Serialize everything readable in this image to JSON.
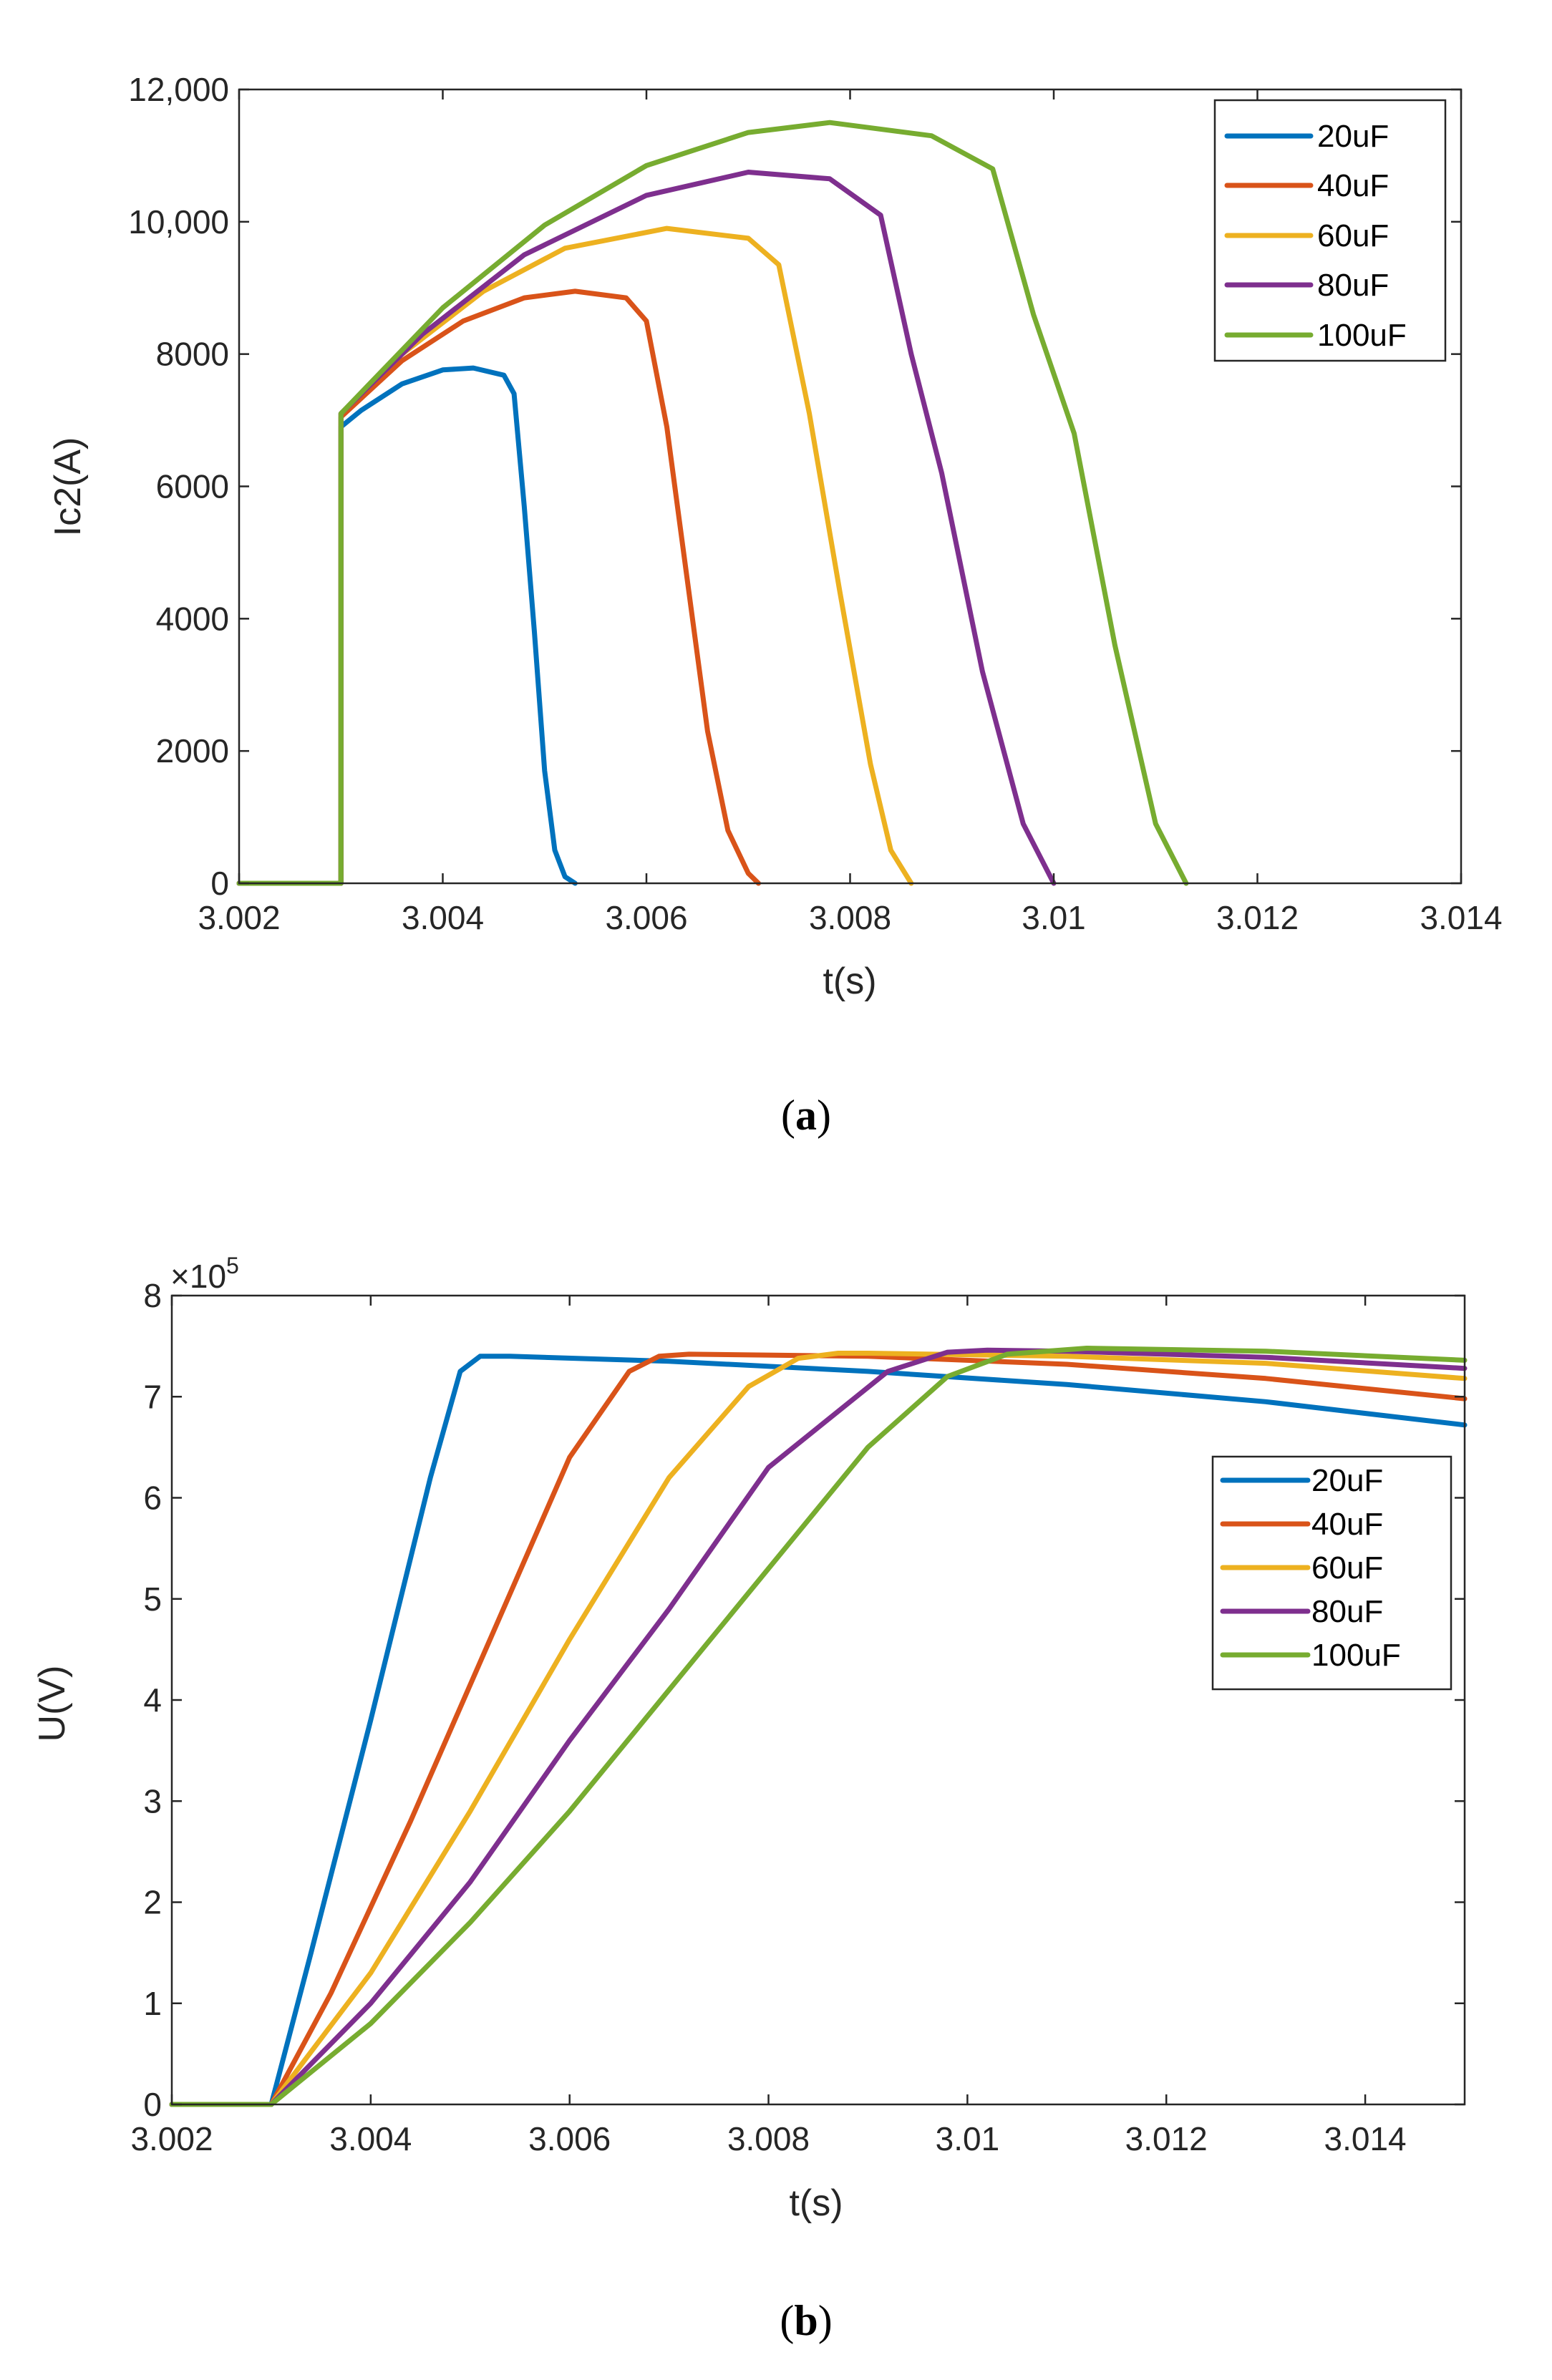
{
  "chart_data": [
    {
      "type": "line",
      "panel_label": "a",
      "title": "",
      "xlabel": "t(s)",
      "ylabel": "Ic2(A)",
      "xlim": [
        3.002,
        3.014
      ],
      "ylim": [
        0,
        12000
      ],
      "xticks": [
        3.002,
        3.004,
        3.006,
        3.008,
        3.01,
        3.012,
        3.014
      ],
      "xtick_labels": [
        "3.002",
        "3.004",
        "3.006",
        "3.008",
        "3.01",
        "3.012",
        "3.014"
      ],
      "yticks": [
        0,
        2000,
        4000,
        6000,
        8000,
        10000,
        12000
      ],
      "ytick_labels": [
        "0",
        "2000",
        "4000",
        "6000",
        "8000",
        "10,000",
        "12,000"
      ],
      "grid": false,
      "legend_position": "top-right",
      "series": [
        {
          "name": "20uF",
          "color": "#0072BD",
          "x": [
            3.002,
            3.003,
            3.003,
            3.0032,
            3.0036,
            3.004,
            3.0043,
            3.0046,
            3.0047,
            3.0048,
            3.0049,
            3.005,
            3.0051,
            3.0052,
            3.0053
          ],
          "y": [
            0,
            0,
            6900,
            7150,
            7550,
            7760,
            7790,
            7680,
            7400,
            5700,
            3800,
            1700,
            500,
            100,
            0
          ]
        },
        {
          "name": "40uF",
          "color": "#D95319",
          "x": [
            3.002,
            3.003,
            3.003,
            3.0036,
            3.0042,
            3.0048,
            3.0053,
            3.0058,
            3.006,
            3.0062,
            3.0064,
            3.0066,
            3.0068,
            3.007,
            3.0071
          ],
          "y": [
            0,
            0,
            7050,
            7900,
            8500,
            8850,
            8950,
            8850,
            8500,
            6900,
            4600,
            2300,
            800,
            150,
            0
          ]
        },
        {
          "name": "60uF",
          "color": "#EDB120",
          "x": [
            3.002,
            3.003,
            3.003,
            3.0036,
            3.0044,
            3.0052,
            3.0062,
            3.007,
            3.0073,
            3.0076,
            3.0079,
            3.0082,
            3.0084,
            3.0086
          ],
          "y": [
            0,
            0,
            7100,
            8000,
            8950,
            9600,
            9900,
            9750,
            9350,
            7100,
            4400,
            1800,
            500,
            0
          ]
        },
        {
          "name": "80uF",
          "color": "#7E2F8E",
          "x": [
            3.002,
            3.003,
            3.003,
            3.0038,
            3.0048,
            3.006,
            3.007,
            3.0078,
            3.0083,
            3.0086,
            3.0089,
            3.0093,
            3.0097,
            3.01
          ],
          "y": [
            0,
            0,
            7100,
            8300,
            9500,
            10400,
            10750,
            10650,
            10100,
            8000,
            6200,
            3200,
            900,
            0
          ]
        },
        {
          "name": "100uF",
          "color": "#77AC30",
          "x": [
            3.002,
            3.003,
            3.003,
            3.004,
            3.005,
            3.006,
            3.007,
            3.0078,
            3.0088,
            3.0094,
            3.0098,
            3.0102,
            3.0106,
            3.011,
            3.0113
          ],
          "y": [
            0,
            0,
            7100,
            8700,
            9950,
            10850,
            11350,
            11500,
            11300,
            10800,
            8600,
            6800,
            3600,
            900,
            0
          ]
        }
      ]
    },
    {
      "type": "line",
      "panel_label": "b",
      "title": "",
      "xlabel": "t(s)",
      "ylabel": "U(V)",
      "y_multiplier_base": "×10",
      "y_multiplier_exp": "5",
      "xlim": [
        3.002,
        3.015
      ],
      "ylim": [
        0,
        8
      ],
      "xticks": [
        3.002,
        3.004,
        3.006,
        3.008,
        3.01,
        3.012,
        3.014
      ],
      "xtick_labels": [
        "3.002",
        "3.004",
        "3.006",
        "3.008",
        "3.01",
        "3.012",
        "3.014"
      ],
      "yticks": [
        0,
        1,
        2,
        3,
        4,
        5,
        6,
        7,
        8
      ],
      "ytick_labels": [
        "0",
        "1",
        "2",
        "3",
        "4",
        "5",
        "6",
        "7",
        "8"
      ],
      "grid": false,
      "legend_position": "right",
      "series": [
        {
          "name": "20uF",
          "color": "#0072BD",
          "x": [
            3.002,
            3.003,
            3.0034,
            3.004,
            3.0046,
            3.0049,
            3.0051,
            3.0054,
            3.007,
            3.009,
            3.011,
            3.013,
            3.015
          ],
          "y": [
            0,
            0,
            1.5,
            3.8,
            6.2,
            7.25,
            7.4,
            7.4,
            7.35,
            7.25,
            7.12,
            6.95,
            6.72
          ]
        },
        {
          "name": "40uF",
          "color": "#D95319",
          "x": [
            3.002,
            3.003,
            3.0036,
            3.0044,
            3.0052,
            3.006,
            3.0066,
            3.0069,
            3.0072,
            3.009,
            3.011,
            3.013,
            3.015
          ],
          "y": [
            0,
            0,
            1.1,
            2.8,
            4.6,
            6.4,
            7.25,
            7.4,
            7.42,
            7.4,
            7.32,
            7.18,
            6.98
          ]
        },
        {
          "name": "60uF",
          "color": "#EDB120",
          "x": [
            3.002,
            3.003,
            3.004,
            3.005,
            3.006,
            3.007,
            3.0078,
            3.0083,
            3.0087,
            3.009,
            3.011,
            3.013,
            3.015
          ],
          "y": [
            0,
            0,
            1.3,
            2.9,
            4.6,
            6.2,
            7.1,
            7.38,
            7.43,
            7.43,
            7.4,
            7.33,
            7.18
          ]
        },
        {
          "name": "80uF",
          "color": "#7E2F8E",
          "x": [
            3.002,
            3.003,
            3.004,
            3.005,
            3.006,
            3.007,
            3.008,
            3.0092,
            3.0098,
            3.0102,
            3.011,
            3.013,
            3.015
          ],
          "y": [
            0,
            0,
            1.0,
            2.2,
            3.6,
            4.9,
            6.3,
            7.25,
            7.44,
            7.46,
            7.45,
            7.39,
            7.28
          ]
        },
        {
          "name": "100uF",
          "color": "#77AC30",
          "x": [
            3.002,
            3.003,
            3.004,
            3.005,
            3.006,
            3.007,
            3.008,
            3.009,
            3.0098,
            3.0104,
            3.0112,
            3.013,
            3.015
          ],
          "y": [
            0,
            0,
            0.8,
            1.8,
            2.9,
            4.1,
            5.3,
            6.5,
            7.2,
            7.42,
            7.48,
            7.45,
            7.36
          ]
        }
      ]
    }
  ]
}
